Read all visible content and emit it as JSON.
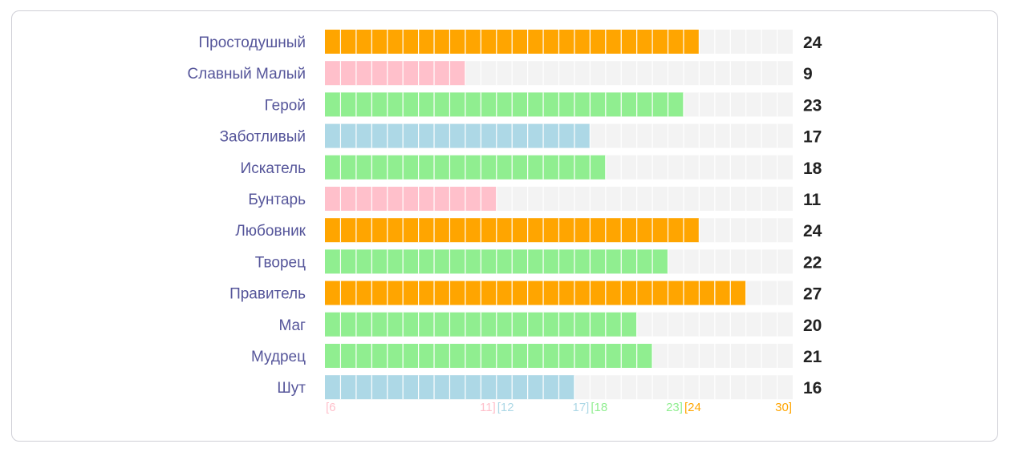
{
  "chart_data": {
    "type": "bar",
    "orientation": "horizontal",
    "categories": [
      "Простодушный",
      "Славный Малый",
      "Герой",
      "Заботливый",
      "Искатель",
      "Бунтарь",
      "Любовник",
      "Творец",
      "Правитель",
      "Маг",
      "Мудрец",
      "Шут"
    ],
    "values": [
      24,
      9,
      23,
      17,
      18,
      11,
      24,
      22,
      27,
      20,
      21,
      16
    ],
    "xlim": [
      6,
      30
    ],
    "grid": true,
    "bands": [
      {
        "min": 6,
        "max": 11,
        "color": "#ffc0cb",
        "start_label": "[6",
        "end_label": "11]"
      },
      {
        "min": 12,
        "max": 17,
        "color": "#add8e6",
        "start_label": "[12",
        "end_label": "17]"
      },
      {
        "min": 18,
        "max": 23,
        "color": "#90ee90",
        "start_label": "[18",
        "end_label": "23]"
      },
      {
        "min": 24,
        "max": 30,
        "color": "#ffa500",
        "start_label": "[24",
        "end_label": "30]"
      }
    ],
    "track_color": "#f3f3f3",
    "title": "",
    "xlabel": "",
    "ylabel": ""
  }
}
